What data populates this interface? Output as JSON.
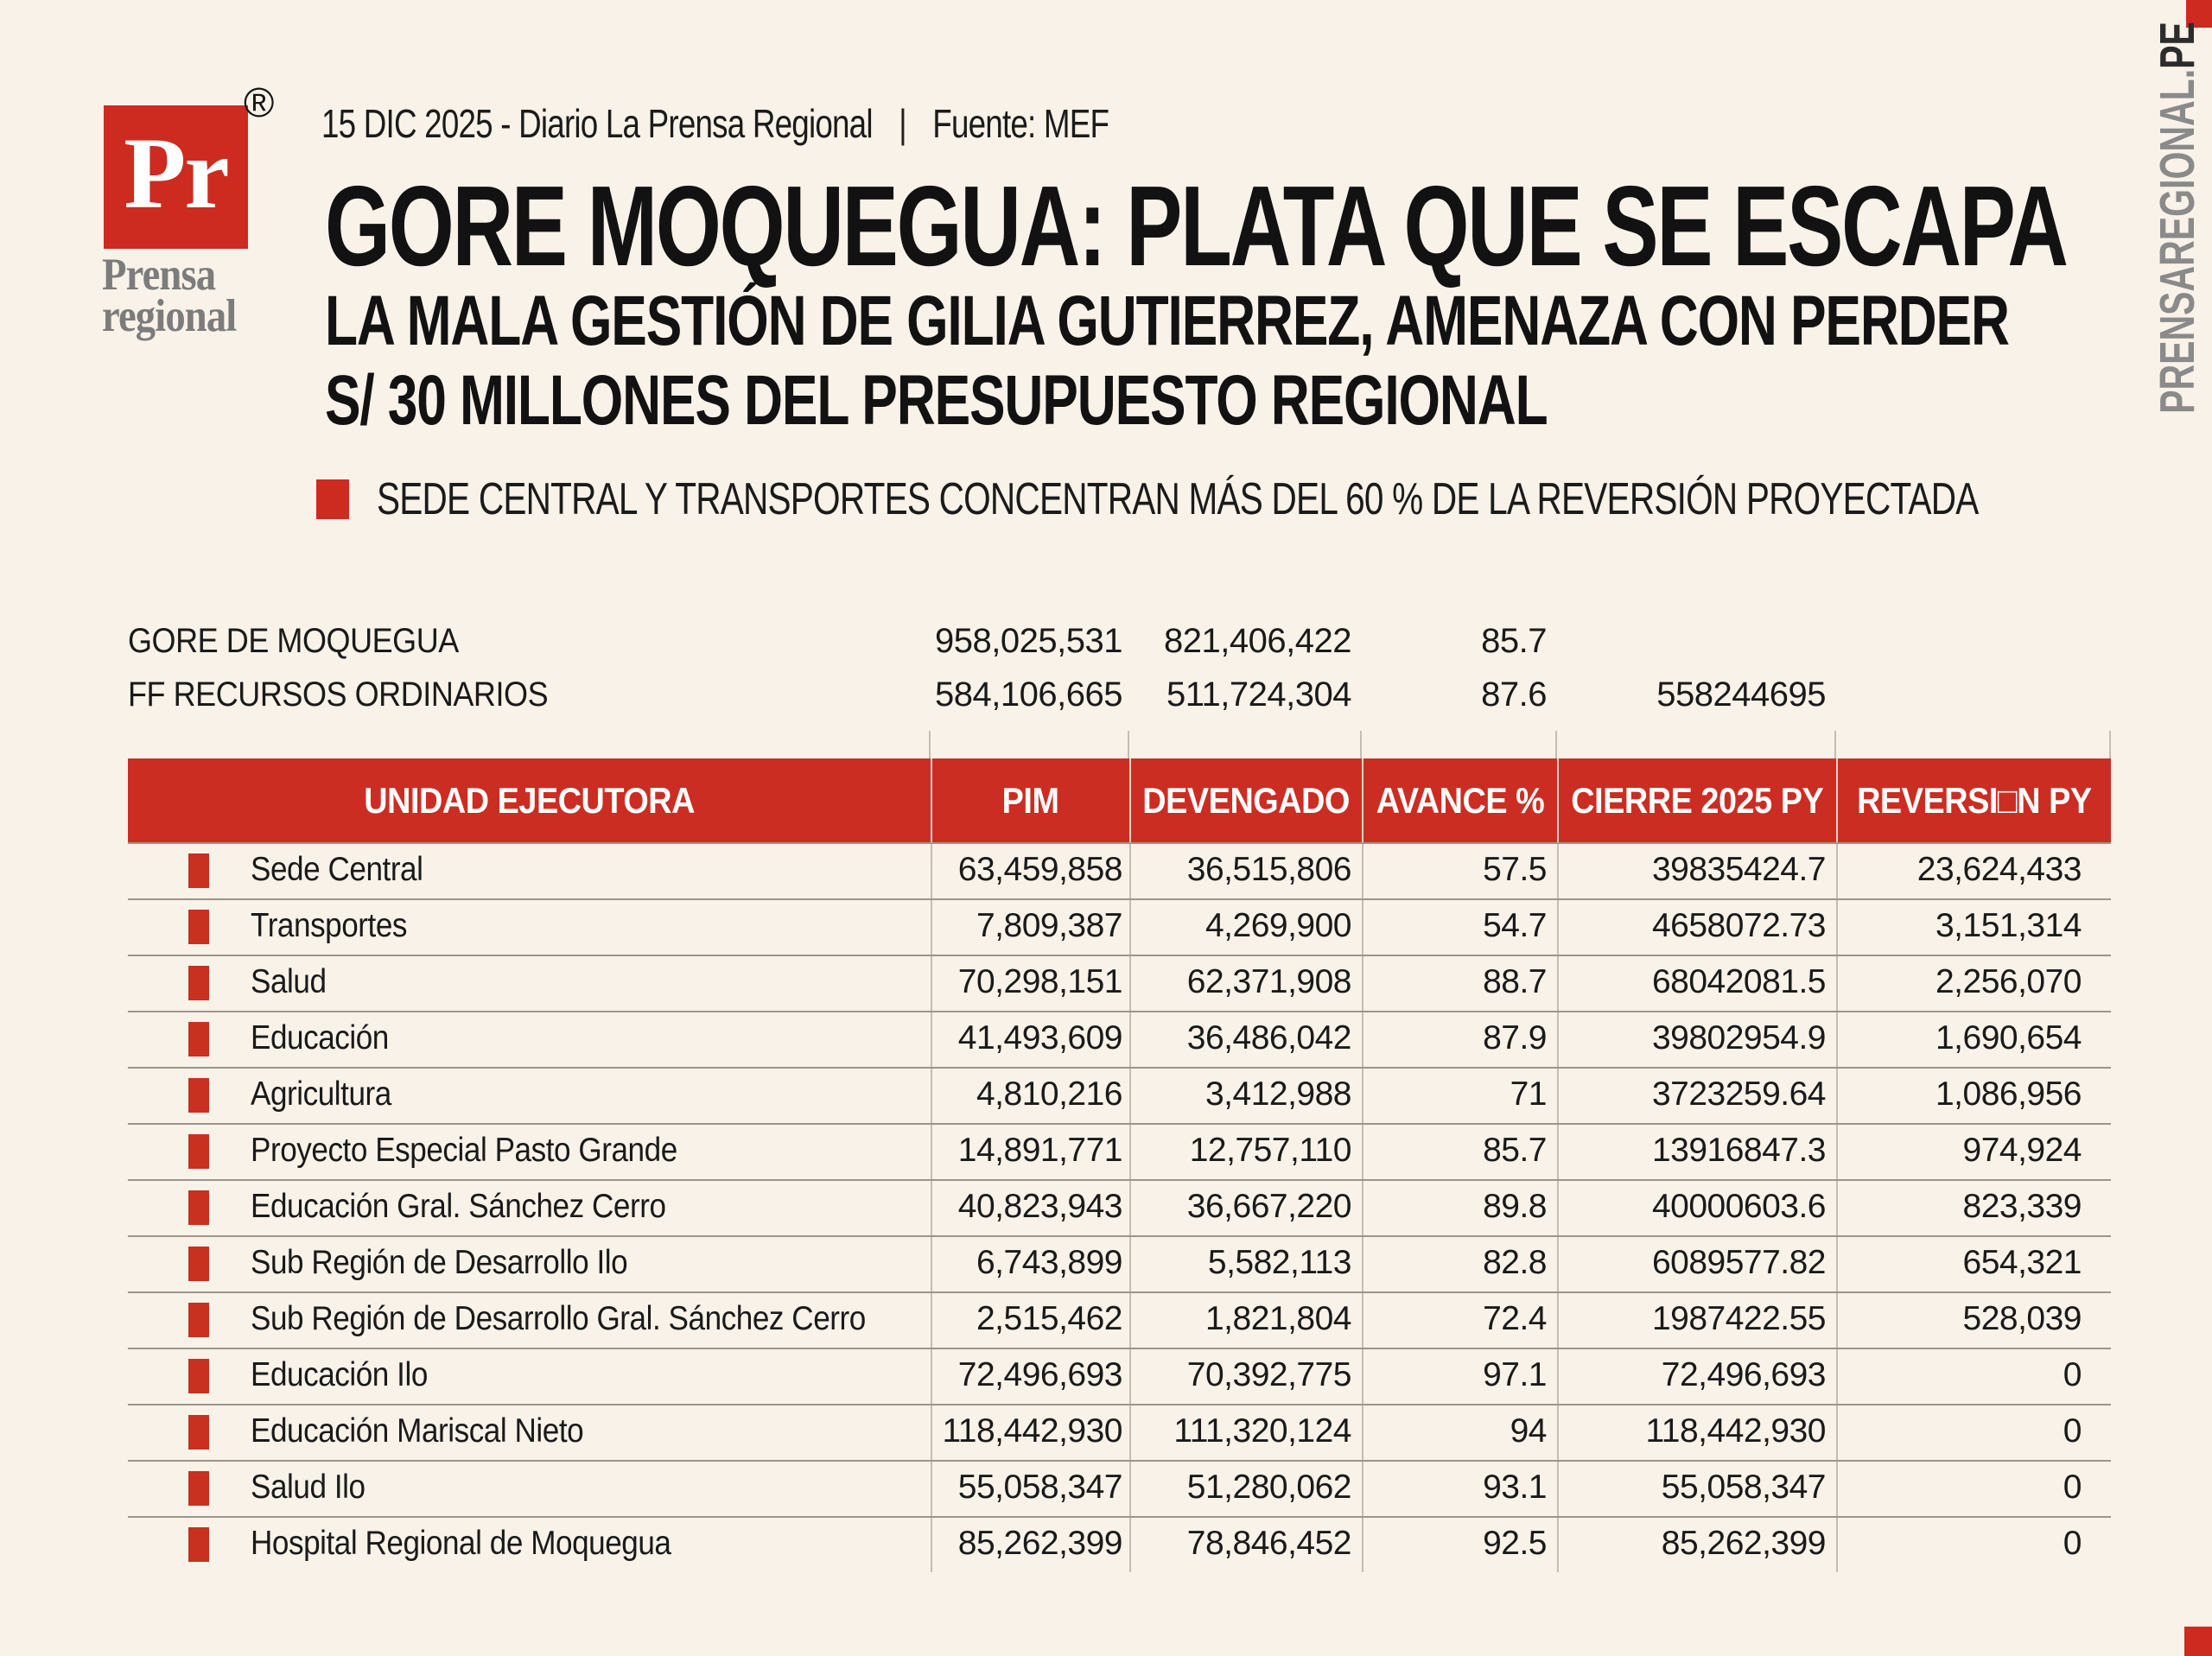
{
  "colors": {
    "background": "#f8f2e9",
    "accent_red": "#cd2b20",
    "header_red": "#cc2d23",
    "text_black": "#1a1a1a",
    "masthead_gray": "#7c7c7c",
    "watermark_gray": "#8a8a8a",
    "row_line_gray": "#9b968d",
    "column_line_gray": "#c3beb4",
    "header_text": "#ffffff"
  },
  "branding": {
    "logo_text": "Pr",
    "registered_mark": "®",
    "masthead_line1": "Prensa",
    "masthead_line2": "regional"
  },
  "meta": {
    "dateline": "15 DIC 2025 - Diario La Prensa Regional",
    "separator": "|",
    "source": "Fuente: MEF"
  },
  "headline": "GORE MOQUEGUA: PLATA QUE SE ESCAPA",
  "subheadline_line1": "LA MALA GESTIÓN DE GILIA GUTIERREZ, AMENAZA CON PERDER",
  "subheadline_line2": "S/ 30 MILLONES DEL PRESUPUESTO REGIONAL",
  "highlight": "SEDE CENTRAL Y TRANSPORTES CONCENTRAN MÁS DEL 60 % DE LA REVERSIÓN PROYECTADA",
  "chart_data": {
    "type": "table",
    "title": "GORE MOQUEGUA: PLATA QUE SE ESCAPA",
    "columns": [
      "UNIDAD EJECUTORA",
      "PIM",
      "DEVENGADO",
      "AVANCE %",
      "CIERRE 2025 PY",
      "REVERSI□N PY"
    ],
    "summary_rows": [
      [
        "GORE DE MOQUEGUA",
        "958,025,531",
        "821,406,422",
        "85.7",
        "",
        ""
      ],
      [
        "FF RECURSOS ORDINARIOS",
        "584,106,665",
        "511,724,304",
        "87.6",
        "558244695",
        ""
      ]
    ],
    "rows": [
      [
        "Sede Central",
        "63,459,858",
        "36,515,806",
        "57.5",
        "39835424.7",
        "23,624,433"
      ],
      [
        "Transportes",
        "7,809,387",
        "4,269,900",
        "54.7",
        "4658072.73",
        "3,151,314"
      ],
      [
        "Salud",
        "70,298,151",
        "62,371,908",
        "88.7",
        "68042081.5",
        "2,256,070"
      ],
      [
        "Educación",
        "41,493,609",
        "36,486,042",
        "87.9",
        "39802954.9",
        "1,690,654"
      ],
      [
        "Agricultura",
        "4,810,216",
        "3,412,988",
        "71",
        "3723259.64",
        "1,086,956"
      ],
      [
        "Proyecto Especial Pasto Grande",
        "14,891,771",
        "12,757,110",
        "85.7",
        "13916847.3",
        "974,924"
      ],
      [
        "Educación Gral. Sánchez Cerro",
        "40,823,943",
        "36,667,220",
        "89.8",
        "40000603.6",
        "823,339"
      ],
      [
        "Sub Región de Desarrollo Ilo",
        "6,743,899",
        "5,582,113",
        "82.8",
        "6089577.82",
        "654,321"
      ],
      [
        "Sub Región de Desarrollo Gral. Sánchez Cerro",
        "2,515,462",
        "1,821,804",
        "72.4",
        "1987422.55",
        "528,039"
      ],
      [
        "Educación Ilo",
        "72,496,693",
        "70,392,775",
        "97.1",
        "72,496,693",
        "0"
      ],
      [
        "Educación Mariscal Nieto",
        "118,442,930",
        "111,320,124",
        "94",
        "118,442,930",
        "0"
      ],
      [
        "Salud Ilo",
        "55,058,347",
        "51,280,062",
        "93.1",
        "55,058,347",
        "0"
      ],
      [
        "Hospital Regional de Moquegua",
        "85,262,399",
        "78,846,452",
        "92.5",
        "85,262,399",
        "0"
      ]
    ]
  },
  "watermark": {
    "gray_part": "PRENSAREGIONAL.",
    "dark_part": "PE"
  }
}
